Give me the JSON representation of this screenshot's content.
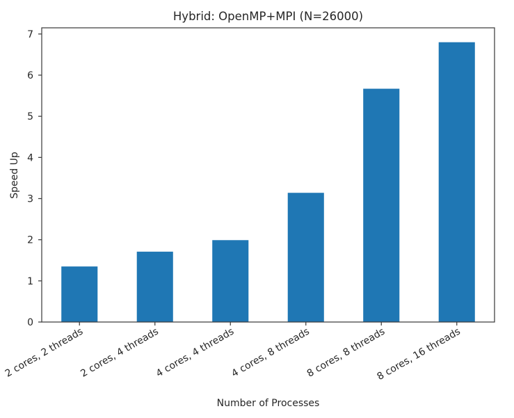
{
  "chart_data": {
    "type": "bar",
    "title": "Hybrid: OpenMP+MPI (N=26000)",
    "xlabel": "Number of Processes",
    "ylabel": "Speed Up",
    "categories": [
      "2 cores, 2 threads",
      "2 cores, 4 threads",
      "4 cores, 4 threads",
      "4 cores, 8 threads",
      "8 cores, 8 threads",
      "8 cores, 16 threads"
    ],
    "values": [
      1.35,
      1.71,
      1.99,
      3.14,
      5.67,
      6.8
    ],
    "ylim": [
      0,
      7.15
    ],
    "yticks": [
      0,
      1,
      2,
      3,
      4,
      5,
      6,
      7
    ],
    "grid": false,
    "bar_color": "#1f77b4"
  }
}
